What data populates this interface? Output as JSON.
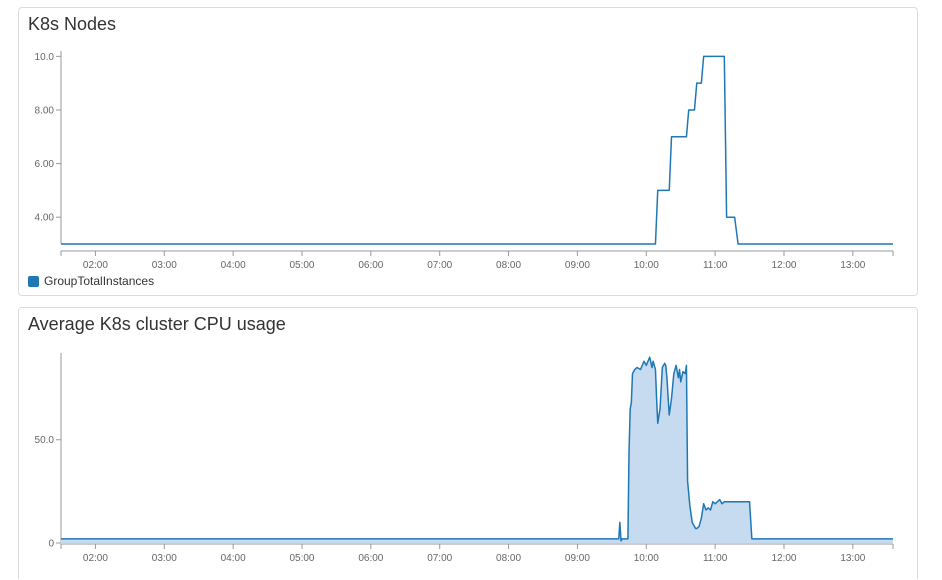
{
  "chart_data": [
    {
      "type": "line",
      "title": "K8s Nodes",
      "xlabel": "",
      "ylabel": "",
      "x_ticks": [
        "02:00",
        "03:00",
        "04:00",
        "05:00",
        "06:00",
        "07:00",
        "08:00",
        "09:00",
        "10:00",
        "11:00",
        "12:00",
        "13:00"
      ],
      "y_ticks": [
        "4.00",
        "6.00",
        "8.00",
        "10.0"
      ],
      "xlim": [
        "01:30",
        "13:35"
      ],
      "ylim": [
        3,
        10.2
      ],
      "legend_position": "bottom-left",
      "grid": false,
      "series": [
        {
          "name": "GroupTotalInstances",
          "color": "#1f77b4",
          "x": [
            "01:30",
            "10:08",
            "10:10",
            "10:20",
            "10:22",
            "10:35",
            "10:37",
            "10:42",
            "10:44",
            "10:48",
            "10:50",
            "10:53",
            "10:56",
            "10:58",
            "11:08",
            "11:10",
            "11:17",
            "11:20",
            "13:35"
          ],
          "y": [
            3,
            3,
            5,
            5,
            7,
            7,
            8,
            8,
            9,
            9,
            10,
            10,
            10,
            10,
            10,
            4,
            4,
            3,
            3
          ]
        }
      ]
    },
    {
      "type": "area",
      "title": "Average K8s cluster CPU usage",
      "xlabel": "",
      "ylabel": "",
      "x_ticks": [
        "02:00",
        "03:00",
        "04:00",
        "05:00",
        "06:00",
        "07:00",
        "08:00",
        "09:00",
        "10:00",
        "11:00",
        "12:00",
        "13:00"
      ],
      "y_ticks": [
        "0",
        "50.0"
      ],
      "xlim": [
        "01:30",
        "13:35"
      ],
      "ylim": [
        0,
        92
      ],
      "grid": false,
      "series": [
        {
          "color": "#1f77b4",
          "fill": "#c6dbef",
          "x": [
            "01:30",
            "09:36",
            "09:37",
            "09:38",
            "09:39",
            "09:40",
            "09:44",
            "09:45",
            "09:46",
            "09:47",
            "09:48",
            "09:50",
            "09:52",
            "09:55",
            "09:58",
            "10:00",
            "10:03",
            "10:05",
            "10:06",
            "10:08",
            "10:09",
            "10:10",
            "10:12",
            "10:14",
            "10:16",
            "10:17",
            "10:18",
            "10:20",
            "10:22",
            "10:24",
            "10:26",
            "10:28",
            "10:29",
            "10:30",
            "10:32",
            "10:34",
            "10:35",
            "10:36",
            "10:38",
            "10:40",
            "10:42",
            "10:43",
            "10:44",
            "10:46",
            "10:48",
            "10:50",
            "10:52",
            "10:54",
            "10:56",
            "10:58",
            "11:00",
            "11:02",
            "11:04",
            "11:06",
            "11:08",
            "11:12",
            "11:14",
            "11:20",
            "11:24",
            "11:30",
            "11:32",
            "11:34",
            "11:36",
            "13:35"
          ],
          "y": [
            2,
            2,
            10,
            1,
            2,
            2,
            2,
            45,
            65,
            68,
            82,
            84,
            85,
            84,
            88,
            86,
            90,
            85,
            88,
            84,
            70,
            58,
            65,
            85,
            87,
            86,
            80,
            62,
            70,
            82,
            86,
            80,
            84,
            78,
            83,
            82,
            86,
            30,
            18,
            10,
            8,
            7,
            7,
            8,
            12,
            19,
            16,
            17,
            16,
            20,
            19,
            20,
            21,
            19,
            20,
            20,
            20,
            20,
            20,
            20,
            2,
            2,
            2,
            2
          ]
        }
      ]
    }
  ]
}
